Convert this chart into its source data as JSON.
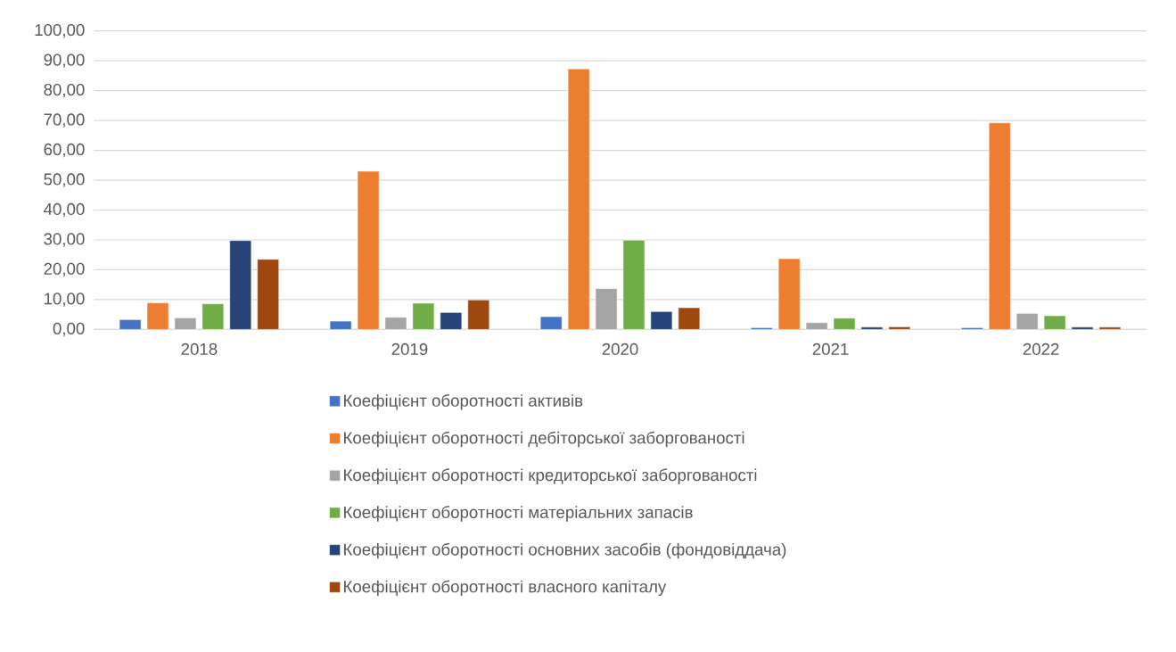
{
  "chart_data": {
    "type": "bar",
    "categories": [
      "2018",
      "2019",
      "2020",
      "2021",
      "2022"
    ],
    "series": [
      {
        "name": "Коефіцієнт оборотності активів",
        "color": "#4472c4",
        "values": [
          3.3,
          2.8,
          4.3,
          0.6,
          0.6
        ]
      },
      {
        "name": "Коефіцієнт оборотності дебіторської заборгованості",
        "color": "#ed7d31",
        "values": [
          8.9,
          53.0,
          87.3,
          23.7,
          69.2
        ]
      },
      {
        "name": "Коефіцієнт оборотності кредиторської заборгованості",
        "color": "#a5a5a5",
        "values": [
          3.9,
          4.1,
          13.7,
          2.3,
          5.4
        ]
      },
      {
        "name": "Коефіцієнт оборотності матеріальних запасів",
        "color": "#70ad47",
        "values": [
          8.6,
          8.8,
          29.9,
          3.8,
          4.6
        ]
      },
      {
        "name": "Коефіцієнт оборотності основних засобів (фондовіддача)",
        "color": "#264478",
        "values": [
          29.8,
          5.7,
          6.0,
          0.8,
          0.8
        ]
      },
      {
        "name": "Коефіцієнт оборотності власного капіталу",
        "color": "#9e480e",
        "values": [
          23.5,
          9.9,
          7.3,
          0.9,
          0.8
        ]
      }
    ],
    "ylim": [
      0,
      100
    ],
    "yticks": [
      {
        "value": 0,
        "label": "0,00"
      },
      {
        "value": 10,
        "label": "10,00"
      },
      {
        "value": 20,
        "label": "20,00"
      },
      {
        "value": 30,
        "label": "30,00"
      },
      {
        "value": 40,
        "label": "40,00"
      },
      {
        "value": 50,
        "label": "50,00"
      },
      {
        "value": 60,
        "label": "60,00"
      },
      {
        "value": 70,
        "label": "70,00"
      },
      {
        "value": 80,
        "label": "80,00"
      },
      {
        "value": 90,
        "label": "90,00"
      },
      {
        "value": 100,
        "label": "100,00"
      }
    ],
    "grid": "y",
    "legend": "bottom"
  }
}
